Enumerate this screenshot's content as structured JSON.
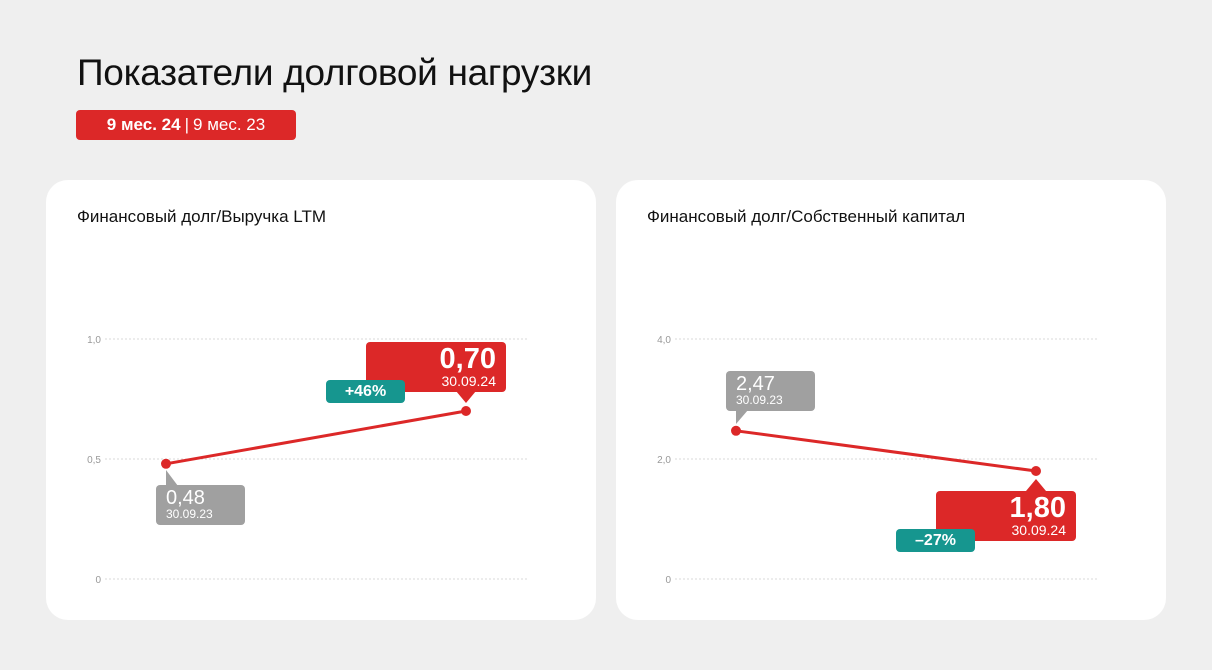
{
  "title": "Показатели долговой нагрузки",
  "period": {
    "current": "9 мес. 24",
    "separator": "|",
    "previous": "9 мес. 23"
  },
  "colors": {
    "accent": "#dc2828",
    "previous": "#a0a0a0",
    "change": "#16968f"
  },
  "chart_data": [
    {
      "type": "line",
      "title": "Финансовый долг/Выручка LTM",
      "ylim": [
        0,
        1.0
      ],
      "yticks": [
        "0",
        "0,5",
        "1,0"
      ],
      "ytick_values": [
        0,
        0.5,
        1.0
      ],
      "grid": true,
      "x": [
        "30.09.23",
        "30.09.24"
      ],
      "values": [
        0.48,
        0.7
      ],
      "labels": {
        "previous": {
          "value": "0,48",
          "date": "30.09.23"
        },
        "current": {
          "value": "0,70",
          "date": "30.09.24"
        },
        "change": "+46%"
      }
    },
    {
      "type": "line",
      "title": "Финансовый долг/Собственный капитал",
      "ylim": [
        0,
        4.0
      ],
      "yticks": [
        "0",
        "2,0",
        "4,0"
      ],
      "ytick_values": [
        0,
        2.0,
        4.0
      ],
      "grid": true,
      "x": [
        "30.09.23",
        "30.09.24"
      ],
      "values": [
        2.47,
        1.8
      ],
      "labels": {
        "previous": {
          "value": "2,47",
          "date": "30.09.23"
        },
        "current": {
          "value": "1,80",
          "date": "30.09.24"
        },
        "change": "–27%"
      }
    }
  ]
}
